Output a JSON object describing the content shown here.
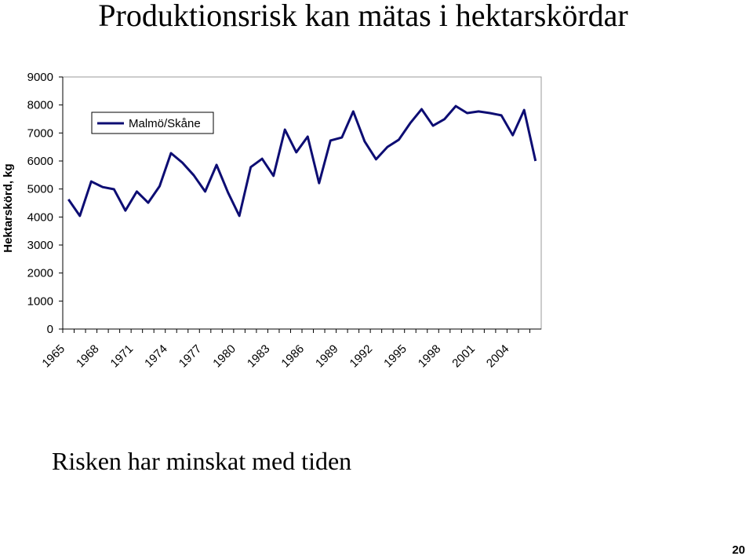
{
  "slide": {
    "title": "Produktionsrisk kan mätas i hektarskördar",
    "caption": "Risken har minskat med tiden",
    "page_number": "20"
  },
  "chart_data": {
    "type": "line",
    "y_label": "Hektarskörd, kg",
    "categories": [
      "1965",
      null,
      null,
      "1968",
      null,
      null,
      "1971",
      null,
      null,
      "1974",
      null,
      null,
      "1977",
      null,
      null,
      "1980",
      null,
      null,
      "1983",
      null,
      null,
      "1986",
      null,
      null,
      "1989",
      null,
      null,
      "1992",
      null,
      null,
      "1995",
      null,
      null,
      "1998",
      null,
      null,
      "2001",
      null,
      null,
      "2004",
      null,
      null
    ],
    "series": [
      {
        "name": "Malmö/Skåne",
        "color": "#0d0d73",
        "values": [
          4630,
          4040,
          5270,
          5070,
          4990,
          4230,
          4910,
          4510,
          5100,
          6280,
          5940,
          5490,
          4910,
          5860,
          4880,
          4040,
          5780,
          6080,
          5470,
          7120,
          6310,
          6870,
          5210,
          6730,
          6840,
          7770,
          6700,
          6060,
          6500,
          6760,
          7350,
          7850,
          7260,
          7490,
          7960,
          7710,
          7770,
          7710,
          7630,
          6920,
          7820,
          6000
        ]
      }
    ],
    "ylim": [
      0,
      9000
    ],
    "yticks": [
      0,
      1000,
      2000,
      3000,
      4000,
      5000,
      6000,
      7000,
      8000,
      9000
    ],
    "grid": false,
    "legend": "top-left"
  }
}
